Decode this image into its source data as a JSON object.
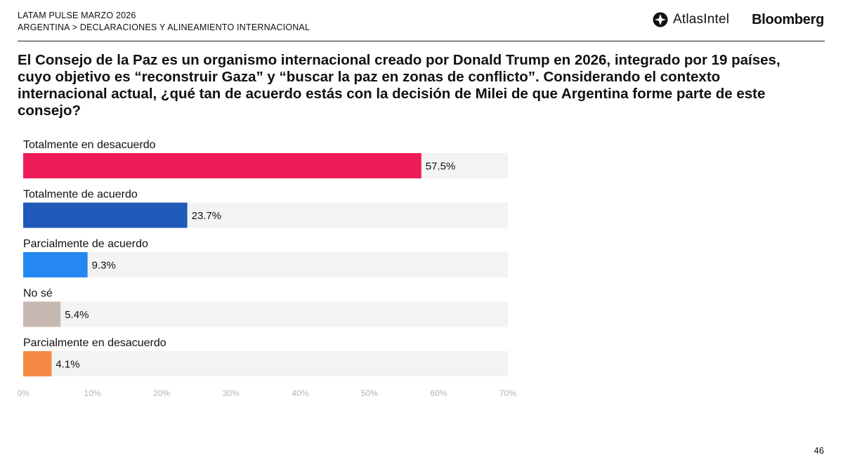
{
  "header": {
    "line1": "LATAM PULSE MARZO 2026",
    "line2": "ARGENTINA > DECLARACIONES Y ALINEAMIENTO INTERNACIONAL"
  },
  "logos": {
    "atlas": "AtlasIntel",
    "bloomberg": "Bloomberg"
  },
  "question": "El Consejo de la Paz es un organismo internacional creado por Donald Trump en 2026, integrado por 19 países, cuyo objetivo es “reconstruir Gaza” y “buscar la paz en zonas de conflicto”. Considerando el contexto internacional actual, ¿qué tan de acuerdo estás con la decisión de Milei de que Argentina forme parte de este consejo?",
  "page_number": "46",
  "chart_data": {
    "type": "bar",
    "orientation": "horizontal",
    "categories": [
      "Totalmente en desacuerdo",
      "Totalmente de acuerdo",
      "Parcialmente de acuerdo",
      "No sé",
      "Parcialmente en desacuerdo"
    ],
    "values": [
      57.5,
      23.7,
      9.3,
      5.4,
      4.1
    ],
    "value_labels": [
      "57.5%",
      "23.7%",
      "9.3%",
      "5.4%",
      "4.1%"
    ],
    "colors": [
      "#ee1d5a",
      "#1f5bb8",
      "#2588f0",
      "#c7b9b2",
      "#f58a45"
    ],
    "track_color": "#f3f3f3",
    "xlim": [
      0,
      70
    ],
    "xticks": [
      0,
      10,
      20,
      30,
      40,
      50,
      60,
      70
    ],
    "xtick_labels": [
      "0%",
      "10%",
      "20%",
      "30%",
      "40%",
      "50%",
      "60%",
      "70%"
    ],
    "grid": false
  }
}
